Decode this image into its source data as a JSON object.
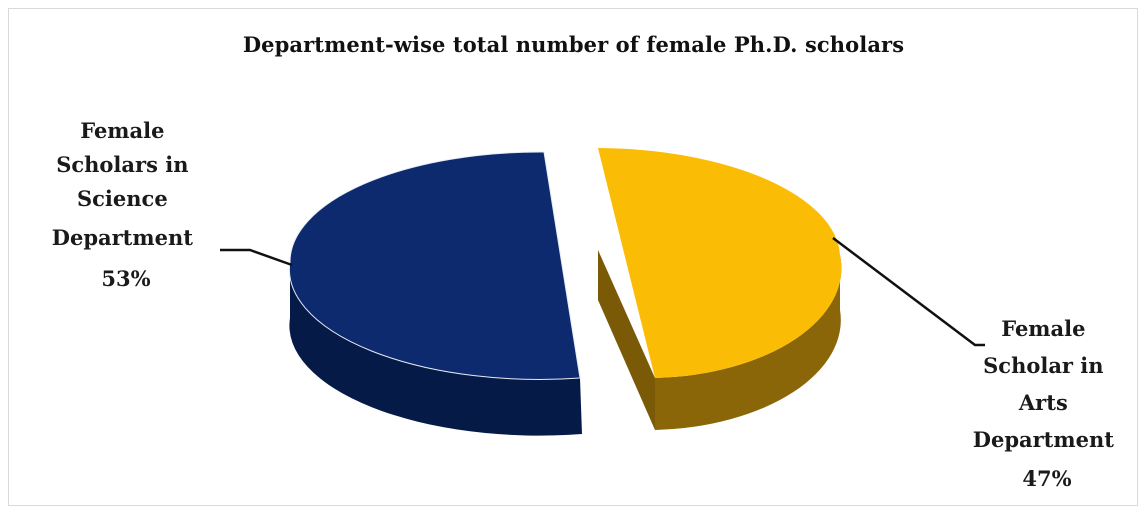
{
  "chart_data": {
    "type": "pie",
    "title": "Department-wise total number of female Ph.D. scholars",
    "slices": [
      {
        "label_lines": [
          "Female",
          "Scholars in",
          "Science",
          "Department",
          "53%"
        ],
        "value": 53,
        "color": "#0d2a6e",
        "side_color": "#061a48"
      },
      {
        "label_lines": [
          "Female",
          "Scholar in",
          "Arts",
          "Department",
          "47%"
        ],
        "value": 47,
        "color": "#fbbc05",
        "side_color": "#7a5a06"
      }
    ]
  }
}
